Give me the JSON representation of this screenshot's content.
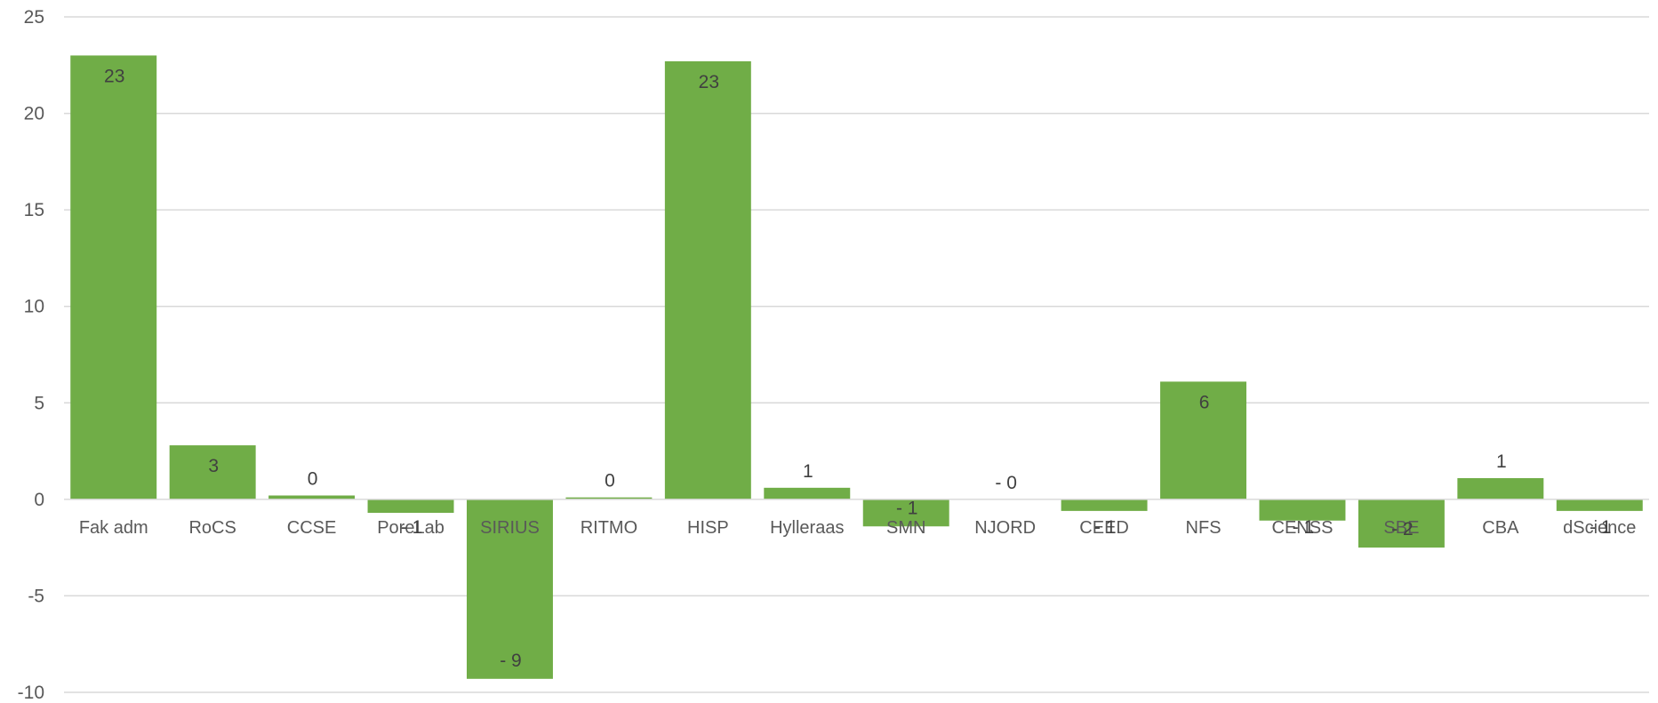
{
  "chart_data": {
    "type": "bar",
    "title": "",
    "xlabel": "",
    "ylabel": "",
    "ylim": [
      -10,
      25
    ],
    "yticks": [
      -10,
      -5,
      0,
      5,
      10,
      15,
      20,
      25
    ],
    "grid": true,
    "legend": "none",
    "bar_color": "#70ad47",
    "categories": [
      "Fak adm",
      "RoCS",
      "CCSE",
      "PoreLab",
      "SIRIUS",
      "RITMO",
      "HISP",
      "Hylleraas",
      "SMN",
      "NJORD",
      "CEED",
      "NFS",
      "CENSS",
      "SBE",
      "CBA",
      "dScience"
    ],
    "values": [
      23.0,
      2.8,
      0.2,
      -0.7,
      -9.3,
      0.1,
      22.7,
      0.6,
      -1.4,
      0.0,
      -0.6,
      6.1,
      -1.1,
      -2.5,
      1.1,
      -0.6
    ],
    "data_labels": [
      "23",
      "3",
      "0",
      "- 1",
      "- 9",
      "0",
      "23",
      "1",
      "- 1",
      "- 0",
      "- 1",
      "6",
      "- 1",
      "- 2",
      "1",
      "- 1"
    ]
  }
}
